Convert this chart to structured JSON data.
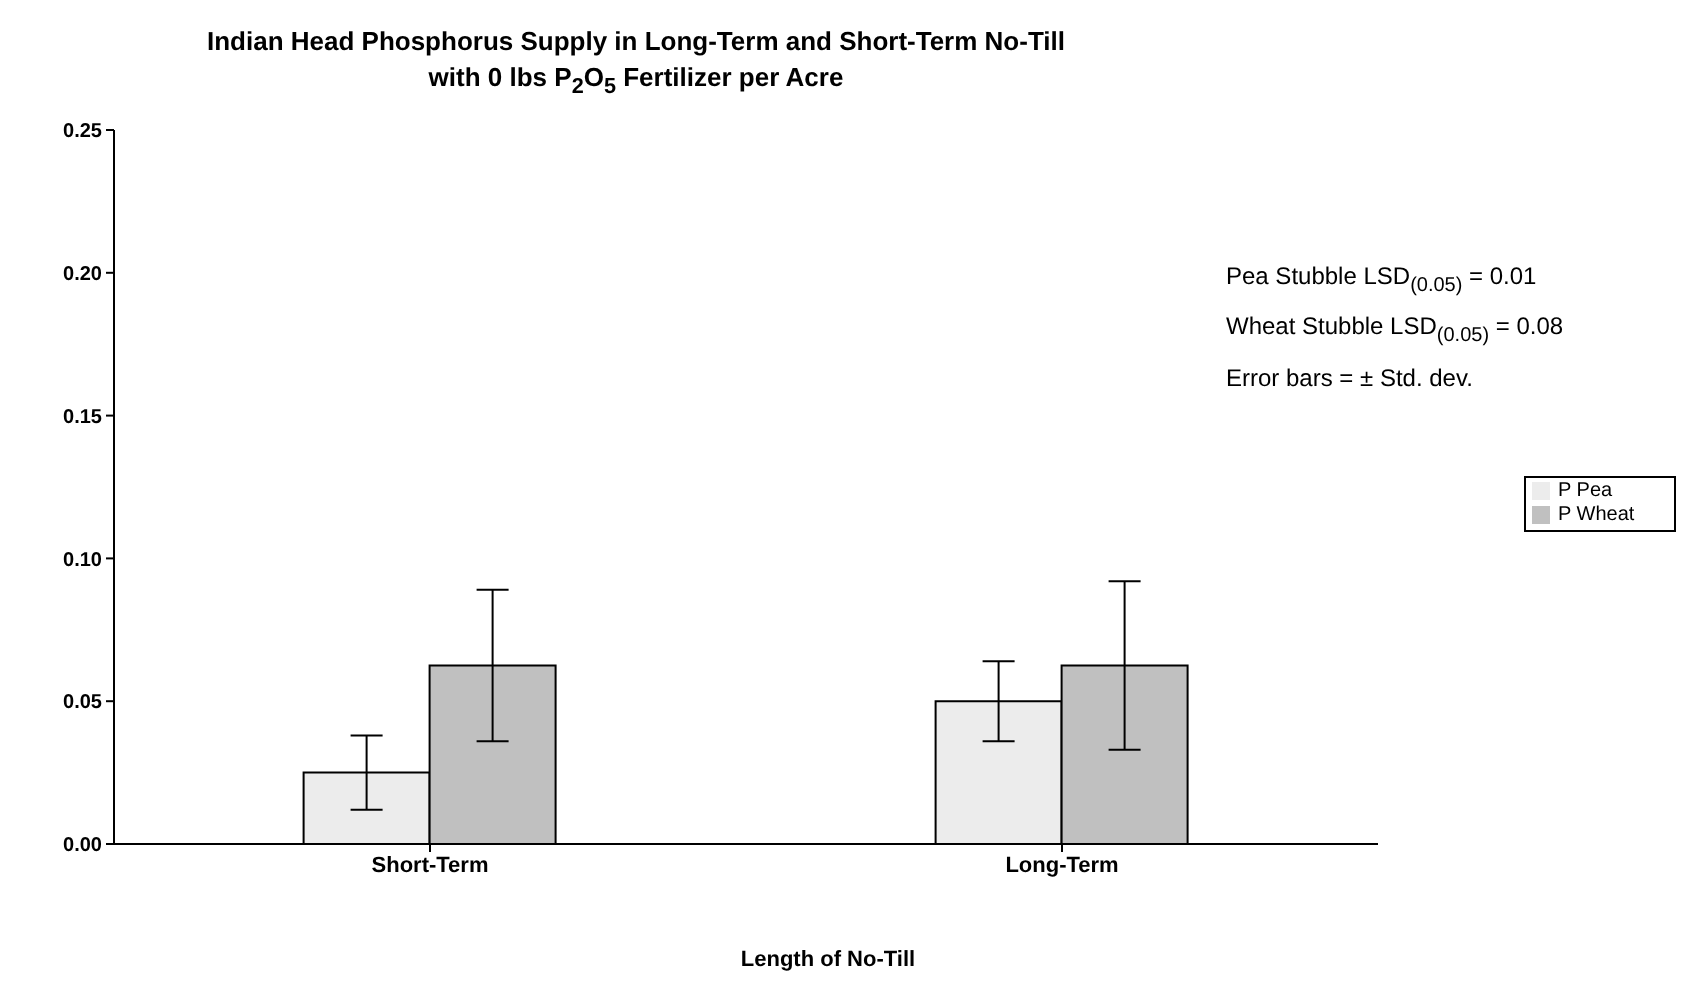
{
  "chart_data": {
    "type": "bar",
    "title": "Indian Head Phosphorus Supply in Long-Term and Short-Term No-Till",
    "subtitle": "with 0 lbs P$_{2}$O$_{5}$ Fertilizer per Acre",
    "xlabel": "Length of No-Till",
    "categories": [
      "Short-Term",
      "Long-Term"
    ],
    "series": [
      {
        "name": "P Pea",
        "color": "#ececec",
        "values": [
          0.025,
          0.05
        ],
        "errors": [
          [
            0.012,
            0.038
          ],
          [
            0.036,
            0.064
          ]
        ]
      },
      {
        "name": "P Wheat",
        "color": "#c0c0c0",
        "values": [
          0.0625,
          0.0625
        ],
        "errors": [
          [
            0.036,
            0.089
          ],
          [
            0.033,
            0.092
          ]
        ]
      }
    ],
    "ylim": [
      0,
      0.25
    ],
    "yticks": [
      {
        "value": 0,
        "label": "0.00"
      },
      0.05,
      {
        "value": 0.1,
        "label": "0.10"
      },
      0.15,
      {
        "value": 0.2,
        "label": "0.20"
      },
      0.25
    ],
    "annotations": [
      "Pea Stubble LSD$_{(0.05)}$ = 0.01",
      "Wheat Stubble LSD$_{(0.05)}$ = 0.08",
      "Error bars = ± Std. dev."
    ],
    "grid": false,
    "legend": "right"
  }
}
